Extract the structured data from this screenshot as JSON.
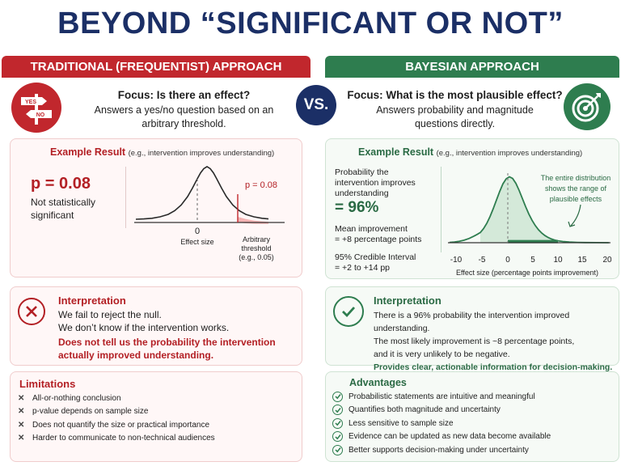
{
  "title": "BEYOND “SIGNIFICANT OR NOT”",
  "vs_label": "VS.",
  "left": {
    "header": "TRADITIONAL (FREQUENTIST) APPROACH",
    "sign_yes": "YES",
    "sign_no": "NO",
    "focus_title": "Focus: Is there an effect?",
    "focus_line1": "Answers a yes/no question based on an",
    "focus_line2": "arbitrary threshold.",
    "example_title": "Example Result",
    "example_sub": "(e.g., intervention improves understanding)",
    "p_value": "p = 0.08",
    "not_sig_line1": "Not statistically",
    "not_sig_line2": "significant",
    "chart_p_label": "p = 0.08",
    "chart_zero": "0",
    "chart_xlabel": "Effect size",
    "threshold_line1": "Arbitrary",
    "threshold_line2": "threshold",
    "threshold_line3": "(e.g., 0.05)",
    "interp_title": "Interpretation",
    "interp_line1": "We fail to reject the null.",
    "interp_line2": "We don’t know if the intervention works.",
    "interp_bold1": "Does not tell us the probability the intervention",
    "interp_bold2": "actually improved understanding.",
    "limits_title": "Limitations",
    "limits": [
      "All-or-nothing conclusion",
      "p-value depends on sample size",
      "Does not quantify the size or practical importance",
      "Harder to communicate to non-technical audiences"
    ]
  },
  "right": {
    "header": "BAYESIAN APPROACH",
    "focus_title": "Focus: What is the most plausible effect?",
    "focus_line1": "Answers probability and magnitude",
    "focus_line2": "questions directly.",
    "example_title": "Example Result",
    "example_sub": "(e.g., intervention improves understanding)",
    "prob_line1": "Probability the",
    "prob_line2": "intervention improves",
    "prob_line3": "understanding",
    "prob_value": "= 96%",
    "mean_line1": "Mean improvement",
    "mean_line2": "= +8 percentage points",
    "ci_line1": "95% Credible Interval",
    "ci_line2": "= +2 to +14 pp",
    "annot_line1": "The entire distribution",
    "annot_line2": "shows the range of",
    "annot_line3": "plausible effects",
    "ticks": [
      "-10",
      "-5",
      "0",
      "5",
      "10",
      "15",
      "20"
    ],
    "xlabel": "Effect size (percentage points improvement)",
    "interp_title": "Interpretation",
    "interp_line1": "There is a 96% probability the intervention improved understanding.",
    "interp_line2": "The most likely improvement is ~8 percentage points,",
    "interp_line3": "and it is very unlikely to be negative.",
    "interp_bold": "Provides clear, actionable information for decision-making.",
    "adv_title": "Advantages",
    "advantages": [
      "Probabilistic statements are intuitive and meaningful",
      "Quantifies both magnitude and uncertainty",
      "Less sensitive to sample size",
      "Evidence can be updated as new data become available",
      "Better supports decision-making under uncertainty"
    ]
  },
  "colors": {
    "navy": "#1b2f66",
    "red": "#c1272d",
    "green": "#2e7d4f"
  }
}
